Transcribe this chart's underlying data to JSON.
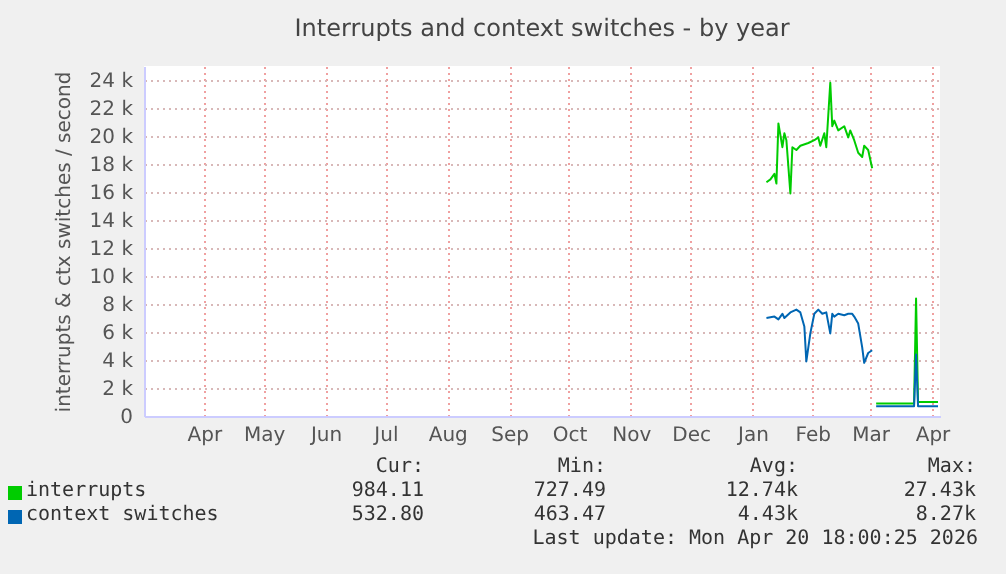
{
  "chart_data": {
    "type": "line",
    "title": "Interrupts and context switches - by year",
    "ylabel": "interrupts & ctx switches / second",
    "xlim": [
      "2025-03-17",
      "2026-04-20"
    ],
    "xticks": [
      {
        "value": "2025-04-16",
        "label": "Apr"
      },
      {
        "value": "2025-05-16",
        "label": "May"
      },
      {
        "value": "2025-06-16",
        "label": "Jun"
      },
      {
        "value": "2025-07-16",
        "label": "Jul"
      },
      {
        "value": "2025-08-16",
        "label": "Aug"
      },
      {
        "value": "2025-09-16",
        "label": "Sep"
      },
      {
        "value": "2025-10-16",
        "label": "Oct"
      },
      {
        "value": "2025-11-16",
        "label": "Nov"
      },
      {
        "value": "2025-12-16",
        "label": "Dec"
      },
      {
        "value": "2026-01-16",
        "label": "Jan"
      },
      {
        "value": "2026-02-15",
        "label": "Feb"
      },
      {
        "value": "2026-03-16",
        "label": "Mar"
      },
      {
        "value": "2026-04-16",
        "label": "Apr"
      }
    ],
    "ylim": [
      0,
      25000
    ],
    "yticks": [
      0,
      {
        "value": 2000,
        "label": "2 k"
      },
      {
        "value": 4000,
        "label": "4 k"
      },
      {
        "value": 6000,
        "label": "6 k"
      },
      {
        "value": 8000,
        "label": "8 k"
      },
      {
        "value": 10000,
        "label": "10 k"
      },
      {
        "value": 12000,
        "label": "12 k"
      },
      {
        "value": 14000,
        "label": "14 k"
      },
      {
        "value": 16000,
        "label": "16 k"
      },
      {
        "value": 18000,
        "label": "18 k"
      },
      {
        "value": 20000,
        "label": "20 k"
      },
      {
        "value": 22000,
        "label": "22 k"
      },
      {
        "value": 24000,
        "label": "24 k"
      }
    ],
    "grid": true,
    "legend": "bottom",
    "line_style": "solid",
    "series": [
      {
        "name": "interrupts",
        "color": "#00cc00",
        "x": [
          "2026-01-23",
          "2026-01-25",
          "2026-01-27",
          "2026-01-28",
          "2026-01-29",
          "2026-01-31",
          "2026-02-01",
          "2026-02-02",
          "2026-02-04",
          "2026-02-05",
          "2026-02-07",
          "2026-02-09",
          "2026-02-13",
          "2026-02-16",
          "2026-02-18",
          "2026-02-19",
          "2026-02-21",
          "2026-02-22",
          "2026-02-24",
          "2026-02-25",
          "2026-02-26",
          "2026-02-28",
          "2026-03-03",
          "2026-03-05",
          "2026-03-06",
          "2026-03-08",
          "2026-03-10",
          "2026-03-12",
          "2026-03-13",
          "2026-03-15",
          "2026-03-17",
          "2026-03-18",
          "2026-03-19",
          "2026-04-07",
          "2026-04-08",
          "2026-04-09",
          "2026-04-12",
          "2026-04-19"
        ],
        "values": [
          16700,
          16900,
          17300,
          16600,
          20900,
          19200,
          20200,
          19700,
          15900,
          19200,
          19000,
          19300,
          19500,
          19700,
          19900,
          19300,
          20200,
          19200,
          23800,
          20700,
          21100,
          20400,
          20700,
          19900,
          20400,
          19700,
          18800,
          18500,
          19300,
          19000,
          17700,
          null,
          900,
          900,
          8400,
          1000,
          1000,
          1000
        ]
      },
      {
        "name": "context switches",
        "color": "#0066b3",
        "x": [
          "2026-01-23",
          "2026-01-27",
          "2026-01-29",
          "2026-01-31",
          "2026-02-01",
          "2026-02-04",
          "2026-02-07",
          "2026-02-09",
          "2026-02-11",
          "2026-02-12",
          "2026-02-14",
          "2026-02-16",
          "2026-02-18",
          "2026-02-20",
          "2026-02-22",
          "2026-02-24",
          "2026-02-25",
          "2026-02-26",
          "2026-02-28",
          "2026-03-03",
          "2026-03-05",
          "2026-03-07",
          "2026-03-08",
          "2026-03-10",
          "2026-03-12",
          "2026-03-13",
          "2026-03-15",
          "2026-03-17",
          "2026-03-18",
          "2026-03-19",
          "2026-04-07",
          "2026-04-08",
          "2026-04-09",
          "2026-04-19"
        ],
        "values": [
          7000,
          7100,
          6900,
          7300,
          7000,
          7400,
          7600,
          7400,
          6400,
          3900,
          5900,
          7300,
          7600,
          7300,
          7400,
          5900,
          7300,
          7100,
          7300,
          7200,
          7300,
          7300,
          7100,
          6600,
          4900,
          3800,
          4500,
          4700,
          null,
          700,
          700,
          4400,
          700,
          700
        ]
      }
    ],
    "annotations": [
      "Cur:",
      "Min:",
      "Avg:",
      "Max:",
      "984.11",
      "727.49",
      "12.74k",
      "27.43k",
      "532.80",
      "463.47",
      "4.43k",
      "8.27k",
      "Last update: Mon Apr 20 18:00:25 2026"
    ]
  }
}
